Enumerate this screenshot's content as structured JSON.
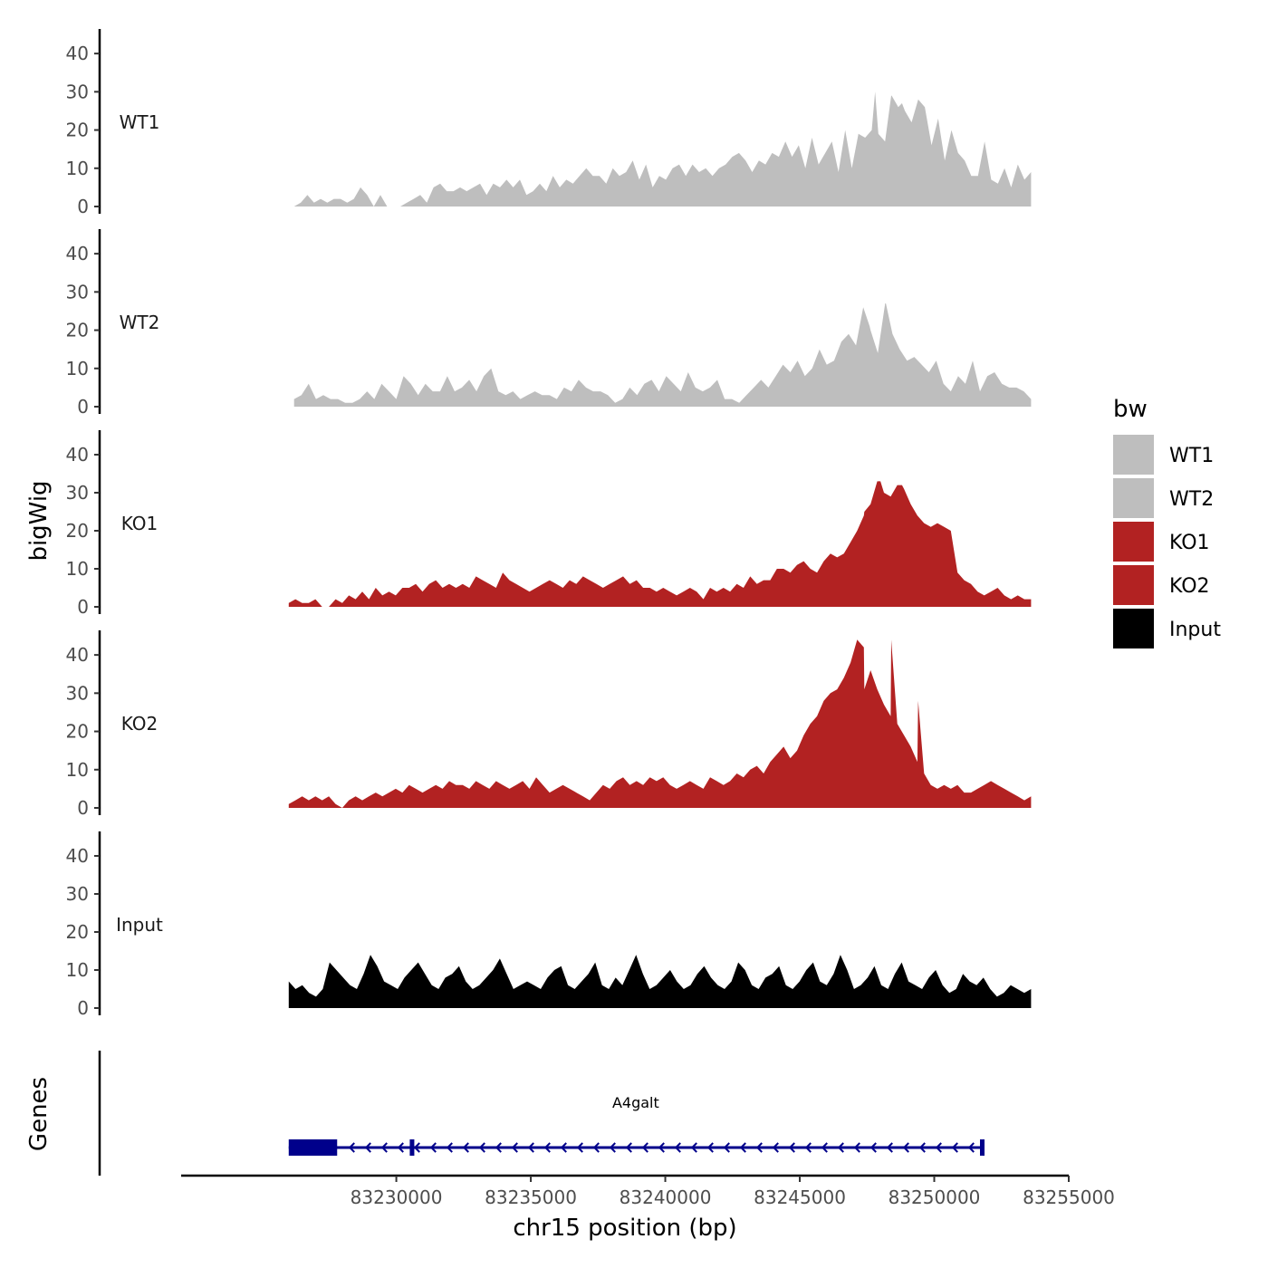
{
  "chart_data": {
    "type": "area",
    "ylabel": "bigWig",
    "xlabel": "chr15 position (bp)",
    "xlim": [
      83222000,
      83255000
    ],
    "ylim": [
      0,
      45
    ],
    "y_ticks": [
      0,
      10,
      20,
      30,
      40
    ],
    "x_ticks": [
      83230000,
      83235000,
      83240000,
      83245000,
      83250000,
      83255000
    ],
    "x_tick_labels": [
      "83230000",
      "83235000",
      "83240000",
      "83245000",
      "83250000",
      "83255000"
    ],
    "legend": {
      "title": "bw",
      "position": "right",
      "entries": [
        {
          "label": "WT1",
          "color": "#bebebe"
        },
        {
          "label": "WT2",
          "color": "#bebebe"
        },
        {
          "label": "KO1",
          "color": "#b22222"
        },
        {
          "label": "KO2",
          "color": "#b22222"
        },
        {
          "label": "Input",
          "color": "#000000"
        }
      ]
    },
    "series": [
      {
        "name": "WT1",
        "color": "#bebebe",
        "x_start": 83226200,
        "x_end": 83253600,
        "values": [
          0,
          1,
          3,
          1,
          2,
          1,
          2,
          2,
          1,
          2,
          5,
          3,
          0,
          3,
          0,
          0,
          0,
          1,
          2,
          3,
          1,
          5,
          6,
          4,
          4,
          5,
          4,
          5,
          6,
          3,
          6,
          5,
          7,
          5,
          7,
          3,
          4,
          6,
          4,
          8,
          5,
          7,
          6,
          8,
          10,
          8,
          8,
          6,
          10,
          8,
          9,
          12,
          7,
          11,
          5,
          8,
          7,
          10,
          11,
          8,
          11,
          9,
          10,
          8,
          10,
          11,
          13,
          14,
          12,
          9,
          12,
          11,
          14,
          13,
          17,
          13,
          16,
          10,
          18,
          11,
          14,
          17,
          9,
          20,
          10,
          19,
          18,
          20,
          19,
          17,
          29,
          26,
          25,
          22,
          28,
          26,
          16,
          23,
          12,
          20,
          14,
          12,
          8,
          8,
          17,
          7,
          6,
          10,
          5,
          11,
          7,
          9
        ],
        "peaks": [
          [
            83247800,
            30
          ],
          [
            83248400,
            29
          ],
          [
            83248800,
            27
          ]
        ]
      },
      {
        "name": "WT2",
        "color": "#bebebe",
        "x_start": 83226200,
        "x_end": 83253600,
        "values": [
          2,
          3,
          6,
          2,
          3,
          2,
          2,
          1,
          1,
          2,
          4,
          2,
          6,
          4,
          2,
          8,
          6,
          3,
          6,
          4,
          4,
          8,
          4,
          5,
          7,
          4,
          8,
          10,
          4,
          3,
          4,
          2,
          3,
          4,
          3,
          3,
          2,
          5,
          4,
          7,
          5,
          4,
          4,
          3,
          1,
          2,
          5,
          3,
          6,
          7,
          4,
          8,
          6,
          4,
          9,
          5,
          4,
          5,
          7,
          2,
          2,
          1,
          3,
          5,
          7,
          5,
          8,
          11,
          9,
          12,
          8,
          10,
          15,
          11,
          12,
          17,
          19,
          16,
          26,
          20,
          14,
          27,
          19,
          15,
          12,
          13,
          11,
          9,
          12,
          6,
          4,
          8,
          6,
          12,
          4,
          8,
          9,
          6,
          5,
          5,
          4,
          2
        ],
        "peaks": [
          [
            83248200,
            27
          ],
          [
            83247600,
            21
          ]
        ]
      },
      {
        "name": "KO1",
        "color": "#b22222",
        "x_start": 83226000,
        "x_end": 83253600,
        "values": [
          1,
          2,
          1,
          1,
          2,
          0,
          0,
          2,
          1,
          3,
          2,
          4,
          2,
          5,
          3,
          4,
          3,
          5,
          5,
          6,
          4,
          6,
          7,
          5,
          6,
          5,
          6,
          5,
          8,
          7,
          6,
          5,
          9,
          7,
          6,
          5,
          4,
          5,
          6,
          7,
          6,
          5,
          7,
          6,
          8,
          7,
          6,
          5,
          6,
          7,
          8,
          6,
          7,
          5,
          5,
          4,
          5,
          4,
          3,
          4,
          5,
          4,
          2,
          5,
          4,
          5,
          4,
          6,
          5,
          8,
          6,
          7,
          7,
          10,
          10,
          9,
          11,
          12,
          10,
          9,
          12,
          14,
          13,
          14,
          17,
          20,
          24,
          27,
          33,
          30,
          29,
          32,
          31,
          27,
          24,
          22,
          21,
          22,
          21,
          20,
          9,
          7,
          6,
          4,
          3,
          4,
          5,
          3,
          2,
          3,
          2,
          2
        ],
        "peaks": [
          [
            83248000,
            33
          ],
          [
            83248800,
            32
          ],
          [
            83247400,
            25
          ]
        ]
      },
      {
        "name": "KO2",
        "color": "#b22222",
        "x_start": 83226000,
        "x_end": 83253600,
        "values": [
          1,
          2,
          3,
          2,
          3,
          2,
          3,
          1,
          0,
          2,
          3,
          2,
          3,
          4,
          3,
          4,
          5,
          4,
          6,
          5,
          4,
          5,
          6,
          5,
          7,
          6,
          6,
          5,
          7,
          6,
          5,
          7,
          6,
          5,
          6,
          7,
          5,
          8,
          6,
          4,
          5,
          6,
          5,
          4,
          3,
          2,
          4,
          6,
          5,
          7,
          8,
          6,
          7,
          6,
          8,
          7,
          8,
          6,
          5,
          6,
          7,
          6,
          5,
          8,
          7,
          6,
          7,
          9,
          8,
          10,
          11,
          9,
          12,
          14,
          16,
          13,
          15,
          19,
          22,
          24,
          28,
          30,
          31,
          34,
          38,
          44,
          42,
          36,
          31,
          27,
          24,
          22,
          19,
          16,
          12,
          9,
          6,
          5,
          6,
          5,
          6,
          4,
          4,
          5,
          6,
          7,
          6,
          5,
          4,
          3,
          2,
          3
        ],
        "peaks": [
          [
            83248400,
            44
          ],
          [
            83247400,
            31
          ],
          [
            83249400,
            28
          ]
        ]
      },
      {
        "name": "Input",
        "color": "#000000",
        "x_start": 83226000,
        "x_end": 83253600,
        "values": [
          7,
          5,
          6,
          4,
          3,
          5,
          12,
          10,
          8,
          6,
          5,
          9,
          14,
          11,
          7,
          6,
          5,
          8,
          10,
          12,
          9,
          6,
          5,
          8,
          9,
          11,
          7,
          5,
          6,
          8,
          10,
          13,
          9,
          5,
          6,
          7,
          6,
          5,
          8,
          10,
          11,
          6,
          5,
          7,
          9,
          12,
          6,
          5,
          8,
          6,
          10,
          14,
          9,
          5,
          6,
          8,
          10,
          7,
          5,
          6,
          9,
          11,
          8,
          6,
          5,
          7,
          12,
          10,
          6,
          5,
          8,
          9,
          11,
          6,
          5,
          7,
          10,
          12,
          7,
          6,
          9,
          14,
          10,
          5,
          6,
          8,
          11,
          6,
          5,
          9,
          12,
          7,
          6,
          5,
          8,
          10,
          6,
          4,
          5,
          9,
          7,
          6,
          8,
          5,
          3,
          4,
          6,
          5,
          4,
          5
        ]
      }
    ],
    "genes": [
      {
        "name": "A4galt",
        "strand": "-",
        "start": 83226000,
        "end": 83251800,
        "exons": [
          [
            83226000,
            83227800
          ],
          [
            83230500,
            83230650
          ],
          [
            83251700,
            83251800
          ]
        ]
      }
    ],
    "strip_labels": [
      "WT1",
      "WT2",
      "KO1",
      "KO2",
      "Input"
    ],
    "gene_track_label": "Genes"
  }
}
